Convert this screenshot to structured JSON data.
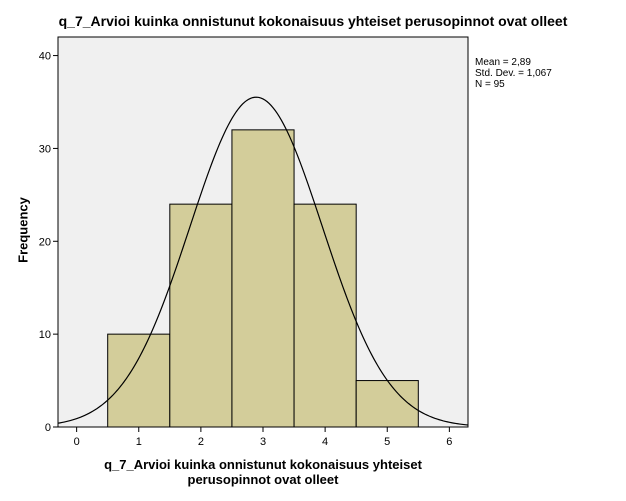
{
  "chart_data": {
    "type": "bar",
    "title": "q_7_Arvioi kuinka onnistunut kokonaisuus yhteiset perusopinnot ovat olleet",
    "xlabel_lines": [
      "q_7_Arvioi kuinka onnistunut kokonaisuus yhteiset",
      "perusopinnot ovat olleet"
    ],
    "ylabel": "Frequency",
    "bins": [
      {
        "from": 0.5,
        "to": 1.5,
        "value": 10
      },
      {
        "from": 1.5,
        "to": 2.5,
        "value": 24
      },
      {
        "from": 2.5,
        "to": 3.5,
        "value": 32
      },
      {
        "from": 3.5,
        "to": 4.5,
        "value": 24
      },
      {
        "from": 4.5,
        "to": 5.5,
        "value": 5
      }
    ],
    "xlim": [
      -0.3,
      6.3
    ],
    "ylim": [
      0,
      42
    ],
    "x_ticks": [
      0,
      1,
      2,
      3,
      4,
      5,
      6
    ],
    "y_ticks": [
      0,
      10,
      20,
      30,
      40
    ],
    "normal_curve": {
      "mean": 2.89,
      "sd": 1.067,
      "n": 95,
      "bin_width": 1
    },
    "stats_text": [
      "Mean = 2,89",
      "Std. Dev. = 1,067",
      "N = 95"
    ],
    "colors": {
      "bar_fill": "#d3cd9a",
      "bar_stroke": "#000000",
      "plot_bg": "#f0f0f0",
      "curve": "#000000"
    },
    "grid": false
  }
}
